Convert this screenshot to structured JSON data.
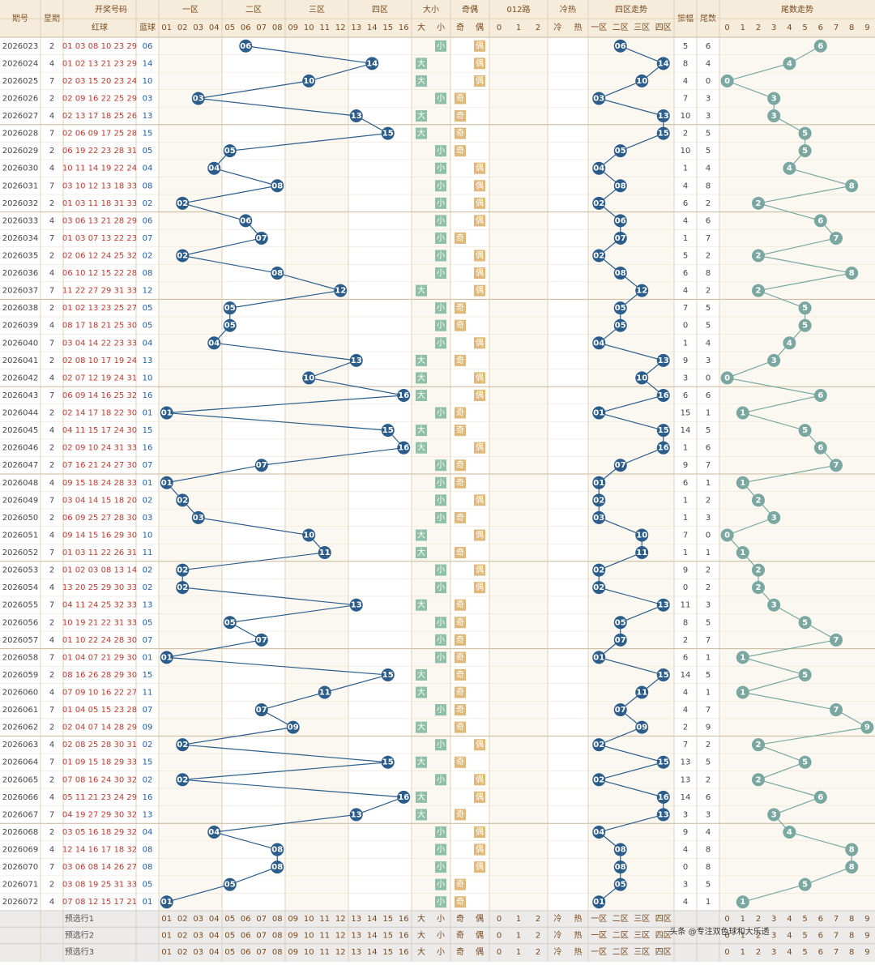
{
  "header": {
    "period": "期号",
    "weekday": "星期",
    "draw": "开奖号码",
    "red": "红球",
    "blue": "蓝球",
    "zones": [
      "一区",
      "二区",
      "三区",
      "四区"
    ],
    "size": "大小",
    "parity": "奇偶",
    "route": "012路",
    "heat": "冷热",
    "zone_trend": "四区走势",
    "amp": "振幅",
    "tail": "尾数",
    "tail_trend": "尾数走势",
    "blue_cols": [
      "01",
      "02",
      "03",
      "04",
      "05",
      "06",
      "07",
      "08",
      "09",
      "10",
      "11",
      "12",
      "13",
      "14",
      "15",
      "16"
    ],
    "size_cols": [
      "大",
      "小"
    ],
    "parity_cols": [
      "奇",
      "偶"
    ],
    "route_cols": [
      "0",
      "1",
      "2"
    ],
    "heat_cols": [
      "冷",
      "热"
    ],
    "tail_cols": [
      "0",
      "1",
      "2",
      "3",
      "4",
      "5",
      "6",
      "7",
      "8",
      "9"
    ]
  },
  "table": {
    "rows": [
      [
        "2026023",
        "2",
        "01 03 08 10 23 29",
        "06",
        "小",
        "偶",
        5,
        6
      ],
      [
        "2026024",
        "4",
        "01 02 13 21 23 29",
        "14",
        "大",
        "偶",
        8,
        4
      ],
      [
        "2026025",
        "7",
        "02 03 15 20 23 24",
        "10",
        "大",
        "偶",
        4,
        0
      ],
      [
        "2026026",
        "2",
        "02 09 16 22 25 29",
        "03",
        "小",
        "奇",
        7,
        3
      ],
      [
        "2026027",
        "4",
        "02 13 17 18 25 26",
        "13",
        "大",
        "奇",
        10,
        3
      ],
      [
        "2026028",
        "7",
        "02 06 09 17 25 28",
        "15",
        "大",
        "奇",
        2,
        5
      ],
      [
        "2026029",
        "2",
        "06 19 22 23 28 31",
        "05",
        "小",
        "奇",
        10,
        5
      ],
      [
        "2026030",
        "4",
        "10 11 14 19 22 24",
        "04",
        "小",
        "偶",
        1,
        4
      ],
      [
        "2026031",
        "7",
        "03 10 12 13 18 33",
        "08",
        "小",
        "偶",
        4,
        8
      ],
      [
        "2026032",
        "2",
        "01 03 11 18 31 33",
        "02",
        "小",
        "偶",
        6,
        2
      ],
      [
        "2026033",
        "4",
        "03 06 13 21 28 29",
        "06",
        "小",
        "偶",
        4,
        6
      ],
      [
        "2026034",
        "7",
        "01 03 07 13 22 23",
        "07",
        "小",
        "奇",
        1,
        7
      ],
      [
        "2026035",
        "2",
        "02 06 12 24 25 32",
        "02",
        "小",
        "偶",
        5,
        2
      ],
      [
        "2026036",
        "4",
        "06 10 12 15 22 28",
        "08",
        "小",
        "偶",
        6,
        8
      ],
      [
        "2026037",
        "7",
        "11 22 27 29 31 33",
        "12",
        "大",
        "偶",
        4,
        2
      ],
      [
        "2026038",
        "2",
        "01 02 13 23 25 27",
        "05",
        "小",
        "奇",
        7,
        5
      ],
      [
        "2026039",
        "4",
        "08 17 18 21 25 30",
        "05",
        "小",
        "奇",
        0,
        5
      ],
      [
        "2026040",
        "7",
        "03 04 14 22 23 33",
        "04",
        "小",
        "偶",
        1,
        4
      ],
      [
        "2026041",
        "2",
        "02 08 10 17 19 24",
        "13",
        "大",
        "奇",
        9,
        3
      ],
      [
        "2026042",
        "4",
        "02 07 12 19 24 31",
        "10",
        "大",
        "偶",
        3,
        0
      ],
      [
        "2026043",
        "7",
        "06 09 14 16 25 32",
        "16",
        "大",
        "偶",
        6,
        6
      ],
      [
        "2026044",
        "2",
        "02 14 17 18 22 30",
        "01",
        "小",
        "奇",
        15,
        1
      ],
      [
        "2026045",
        "4",
        "04 11 15 17 24 30",
        "15",
        "大",
        "奇",
        14,
        5
      ],
      [
        "2026046",
        "2",
        "02 09 10 24 31 33",
        "16",
        "大",
        "偶",
        1,
        6
      ],
      [
        "2026047",
        "2",
        "07 16 21 24 27 30",
        "07",
        "小",
        "奇",
        9,
        7
      ],
      [
        "2026048",
        "4",
        "09 15 18 24 28 33",
        "01",
        "小",
        "奇",
        6,
        1
      ],
      [
        "2026049",
        "7",
        "03 04 14 15 18 20",
        "02",
        "小",
        "偶",
        1,
        2
      ],
      [
        "2026050",
        "2",
        "06 09 25 27 28 30",
        "03",
        "小",
        "奇",
        1,
        3
      ],
      [
        "2026051",
        "4",
        "09 14 15 16 29 30",
        "10",
        "大",
        "偶",
        7,
        0
      ],
      [
        "2026052",
        "7",
        "01 03 11 22 26 31",
        "11",
        "大",
        "奇",
        1,
        1
      ],
      [
        "2026053",
        "2",
        "01 02 03 08 13 14",
        "02",
        "小",
        "偶",
        9,
        2
      ],
      [
        "2026054",
        "4",
        "13 20 25 29 30 33",
        "02",
        "小",
        "偶",
        0,
        2
      ],
      [
        "2026055",
        "7",
        "04 11 24 25 32 33",
        "13",
        "大",
        "奇",
        11,
        3
      ],
      [
        "2026056",
        "2",
        "10 19 21 22 31 33",
        "05",
        "小",
        "奇",
        8,
        5
      ],
      [
        "2026057",
        "4",
        "01 10 22 24 28 30",
        "07",
        "小",
        "奇",
        2,
        7
      ],
      [
        "2026058",
        "7",
        "01 04 07 21 29 30",
        "01",
        "小",
        "奇",
        6,
        1
      ],
      [
        "2026059",
        "2",
        "08 16 26 28 29 30",
        "15",
        "大",
        "奇",
        14,
        5
      ],
      [
        "2026060",
        "4",
        "07 09 10 16 22 27",
        "11",
        "大",
        "奇",
        4,
        1
      ],
      [
        "2026061",
        "7",
        "01 04 05 15 23 28",
        "07",
        "小",
        "奇",
        4,
        7
      ],
      [
        "2026062",
        "2",
        "02 04 07 14 28 29",
        "09",
        "大",
        "奇",
        2,
        9
      ],
      [
        "2026063",
        "4",
        "02 08 25 28 30 31",
        "02",
        "小",
        "偶",
        7,
        2
      ],
      [
        "2026064",
        "7",
        "01 09 15 18 29 33",
        "15",
        "大",
        "奇",
        13,
        5
      ],
      [
        "2026065",
        "2",
        "07 08 16 24 30 32",
        "02",
        "小",
        "偶",
        13,
        2
      ],
      [
        "2026066",
        "4",
        "05 11 21 23 24 29",
        "16",
        "大",
        "偶",
        14,
        6
      ],
      [
        "2026067",
        "7",
        "04 19 27 29 30 32",
        "13",
        "大",
        "奇",
        3,
        3
      ],
      [
        "2026068",
        "2",
        "03 05 16 18 29 32",
        "04",
        "小",
        "偶",
        9,
        4
      ],
      [
        "2026069",
        "4",
        "12 14 16 17 18 32",
        "08",
        "小",
        "偶",
        4,
        8
      ],
      [
        "2026070",
        "7",
        "03 06 08 14 26 27",
        "08",
        "小",
        "偶",
        0,
        8
      ],
      [
        "2026071",
        "2",
        "03 08 19 25 31 33",
        "05",
        "小",
        "奇",
        3,
        5
      ],
      [
        "2026072",
        "4",
        "07 08 12 15 17 21",
        "01",
        "小",
        "奇",
        4,
        1
      ]
    ],
    "footer": [
      "预选行1",
      "预选行2",
      "预选行3"
    ]
  },
  "watermark": "头条 @专注双色球和大乐透"
}
